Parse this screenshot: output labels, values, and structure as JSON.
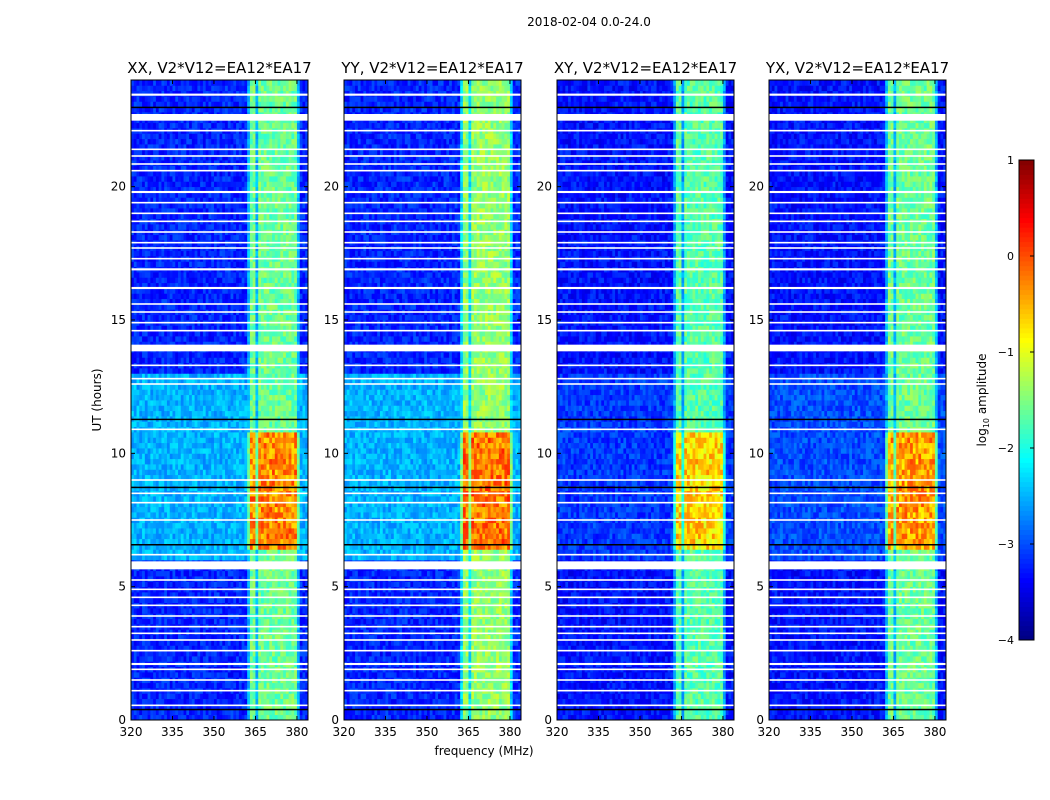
{
  "chart_data": {
    "type": "heatmap",
    "suptitle": "2018-02-04 0.0-24.0",
    "xlabel": "frequency (MHz)",
    "ylabel": "UT (hours)",
    "xlim": [
      320,
      384
    ],
    "ylim": [
      0,
      24
    ],
    "xticks": [
      "320",
      "335",
      "350",
      "365",
      "380"
    ],
    "xtick_values": [
      320,
      335,
      350,
      365,
      380
    ],
    "yticks": [
      "0",
      "5",
      "10",
      "15",
      "20"
    ],
    "ytick_values": [
      0,
      5,
      10,
      15,
      20
    ],
    "colorbar": {
      "label": "log",
      "label_sub": "10",
      "label_rest": " amplitude",
      "colormap": "jet",
      "range": [
        -4,
        1
      ],
      "ticks": [
        "−4",
        "−3",
        "−2",
        "−1",
        "0",
        "1"
      ],
      "tick_values": [
        -4,
        -3,
        -2,
        -1,
        0,
        1
      ]
    },
    "panels": [
      {
        "title": "XX, V2*V12=EA12*EA17",
        "background_level": -3.2,
        "active_background_level": -2.5,
        "band_level": -1.6,
        "active_band_level": -0.3
      },
      {
        "title": "YY, V2*V12=EA12*EA17",
        "background_level": -3.2,
        "active_background_level": -2.5,
        "band_level": -1.4,
        "active_band_level": -0.2
      },
      {
        "title": "XY, V2*V12=EA12*EA17",
        "background_level": -3.3,
        "active_background_level": -3.1,
        "band_level": -1.7,
        "active_band_level": -0.7
      },
      {
        "title": "YX, V2*V12=EA12*EA17",
        "background_level": -3.3,
        "active_background_level": -3.0,
        "band_level": -1.6,
        "active_band_level": -0.4
      }
    ],
    "active_period_hours": [
      6.0,
      13.0
    ],
    "band_active_hours": [
      6.5,
      10.7
    ],
    "sub_bands_mhz": [
      [
        363,
        365.2
      ],
      [
        366,
        368.5
      ],
      [
        369,
        371.5
      ],
      [
        372,
        374.5
      ],
      [
        375,
        377.8
      ],
      [
        378.3,
        380
      ]
    ],
    "flagged_hours": [
      [
        23.45,
        0.08
      ],
      [
        22.6,
        0.25
      ],
      [
        22.1,
        0.06
      ],
      [
        21.4,
        0.06
      ],
      [
        21.15,
        0.06
      ],
      [
        20.85,
        0.06
      ],
      [
        20.6,
        0.06
      ],
      [
        19.8,
        0.08
      ],
      [
        19.4,
        0.06
      ],
      [
        19.0,
        0.06
      ],
      [
        18.7,
        0.06
      ],
      [
        18.3,
        0.06
      ],
      [
        17.9,
        0.06
      ],
      [
        17.7,
        0.06
      ],
      [
        17.3,
        0.06
      ],
      [
        16.9,
        0.08
      ],
      [
        16.2,
        0.08
      ],
      [
        15.6,
        0.06
      ],
      [
        15.3,
        0.06
      ],
      [
        14.9,
        0.06
      ],
      [
        14.6,
        0.06
      ],
      [
        13.95,
        0.25
      ],
      [
        13.3,
        0.06
      ],
      [
        12.8,
        0.06
      ],
      [
        12.6,
        0.06
      ],
      [
        10.9,
        0.06
      ],
      [
        9.0,
        0.06
      ],
      [
        8.5,
        0.06
      ],
      [
        8.15,
        0.06
      ],
      [
        7.5,
        0.06
      ],
      [
        6.2,
        0.06
      ],
      [
        5.8,
        0.3
      ],
      [
        5.25,
        0.06
      ],
      [
        4.9,
        0.06
      ],
      [
        4.6,
        0.06
      ],
      [
        4.3,
        0.06
      ],
      [
        3.9,
        0.06
      ],
      [
        3.5,
        0.06
      ],
      [
        3.25,
        0.06
      ],
      [
        3.0,
        0.06
      ],
      [
        2.6,
        0.06
      ],
      [
        2.1,
        0.08
      ],
      [
        1.9,
        0.06
      ],
      [
        1.5,
        0.06
      ],
      [
        1.1,
        0.06
      ],
      [
        0.55,
        0.06
      ]
    ],
    "dark_hours": [
      23.0,
      11.3,
      8.75,
      6.6,
      0.42
    ]
  }
}
